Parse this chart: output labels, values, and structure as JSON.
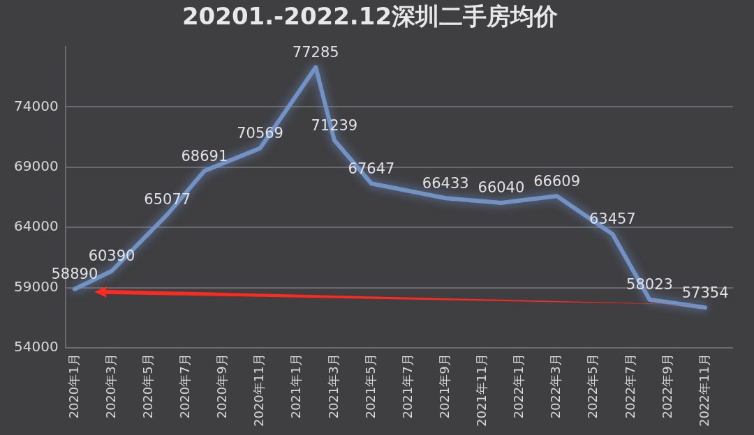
{
  "chart_data": {
    "type": "line",
    "title": "20201.-2022.12深圳二手房均价",
    "categories": [
      "2020年1月",
      null,
      "2020年3月",
      null,
      "2020年5月",
      null,
      "2020年7月",
      null,
      "2020年9月",
      null,
      "2020年11月",
      null,
      "2021年1月",
      null,
      "2021年3月",
      null,
      "2021年5月",
      null,
      "2021年7月",
      null,
      "2021年9月",
      null,
      "2021年11月",
      null,
      "2022年1月",
      null,
      "2022年3月",
      null,
      "2022年5月",
      null,
      "2022年7月",
      null,
      "2022年9月",
      null,
      "2022年11月",
      null
    ],
    "series": [
      {
        "color": "#7392c4",
        "values": [
          58890,
          null,
          60390,
          null,
          null,
          65077,
          null,
          68691,
          null,
          null,
          70569,
          null,
          null,
          77285,
          71239,
          null,
          67647,
          null,
          null,
          null,
          66433,
          null,
          null,
          66040,
          null,
          null,
          66609,
          null,
          null,
          63457,
          null,
          58023,
          null,
          null,
          57354,
          null
        ]
      }
    ],
    "ylim": [
      54000,
      79000
    ],
    "yticks": [
      54000,
      59000,
      64000,
      69000,
      74000
    ],
    "grid": "y",
    "legend": false,
    "marker": "none",
    "line_style": "solid",
    "data_labels": true
  }
}
